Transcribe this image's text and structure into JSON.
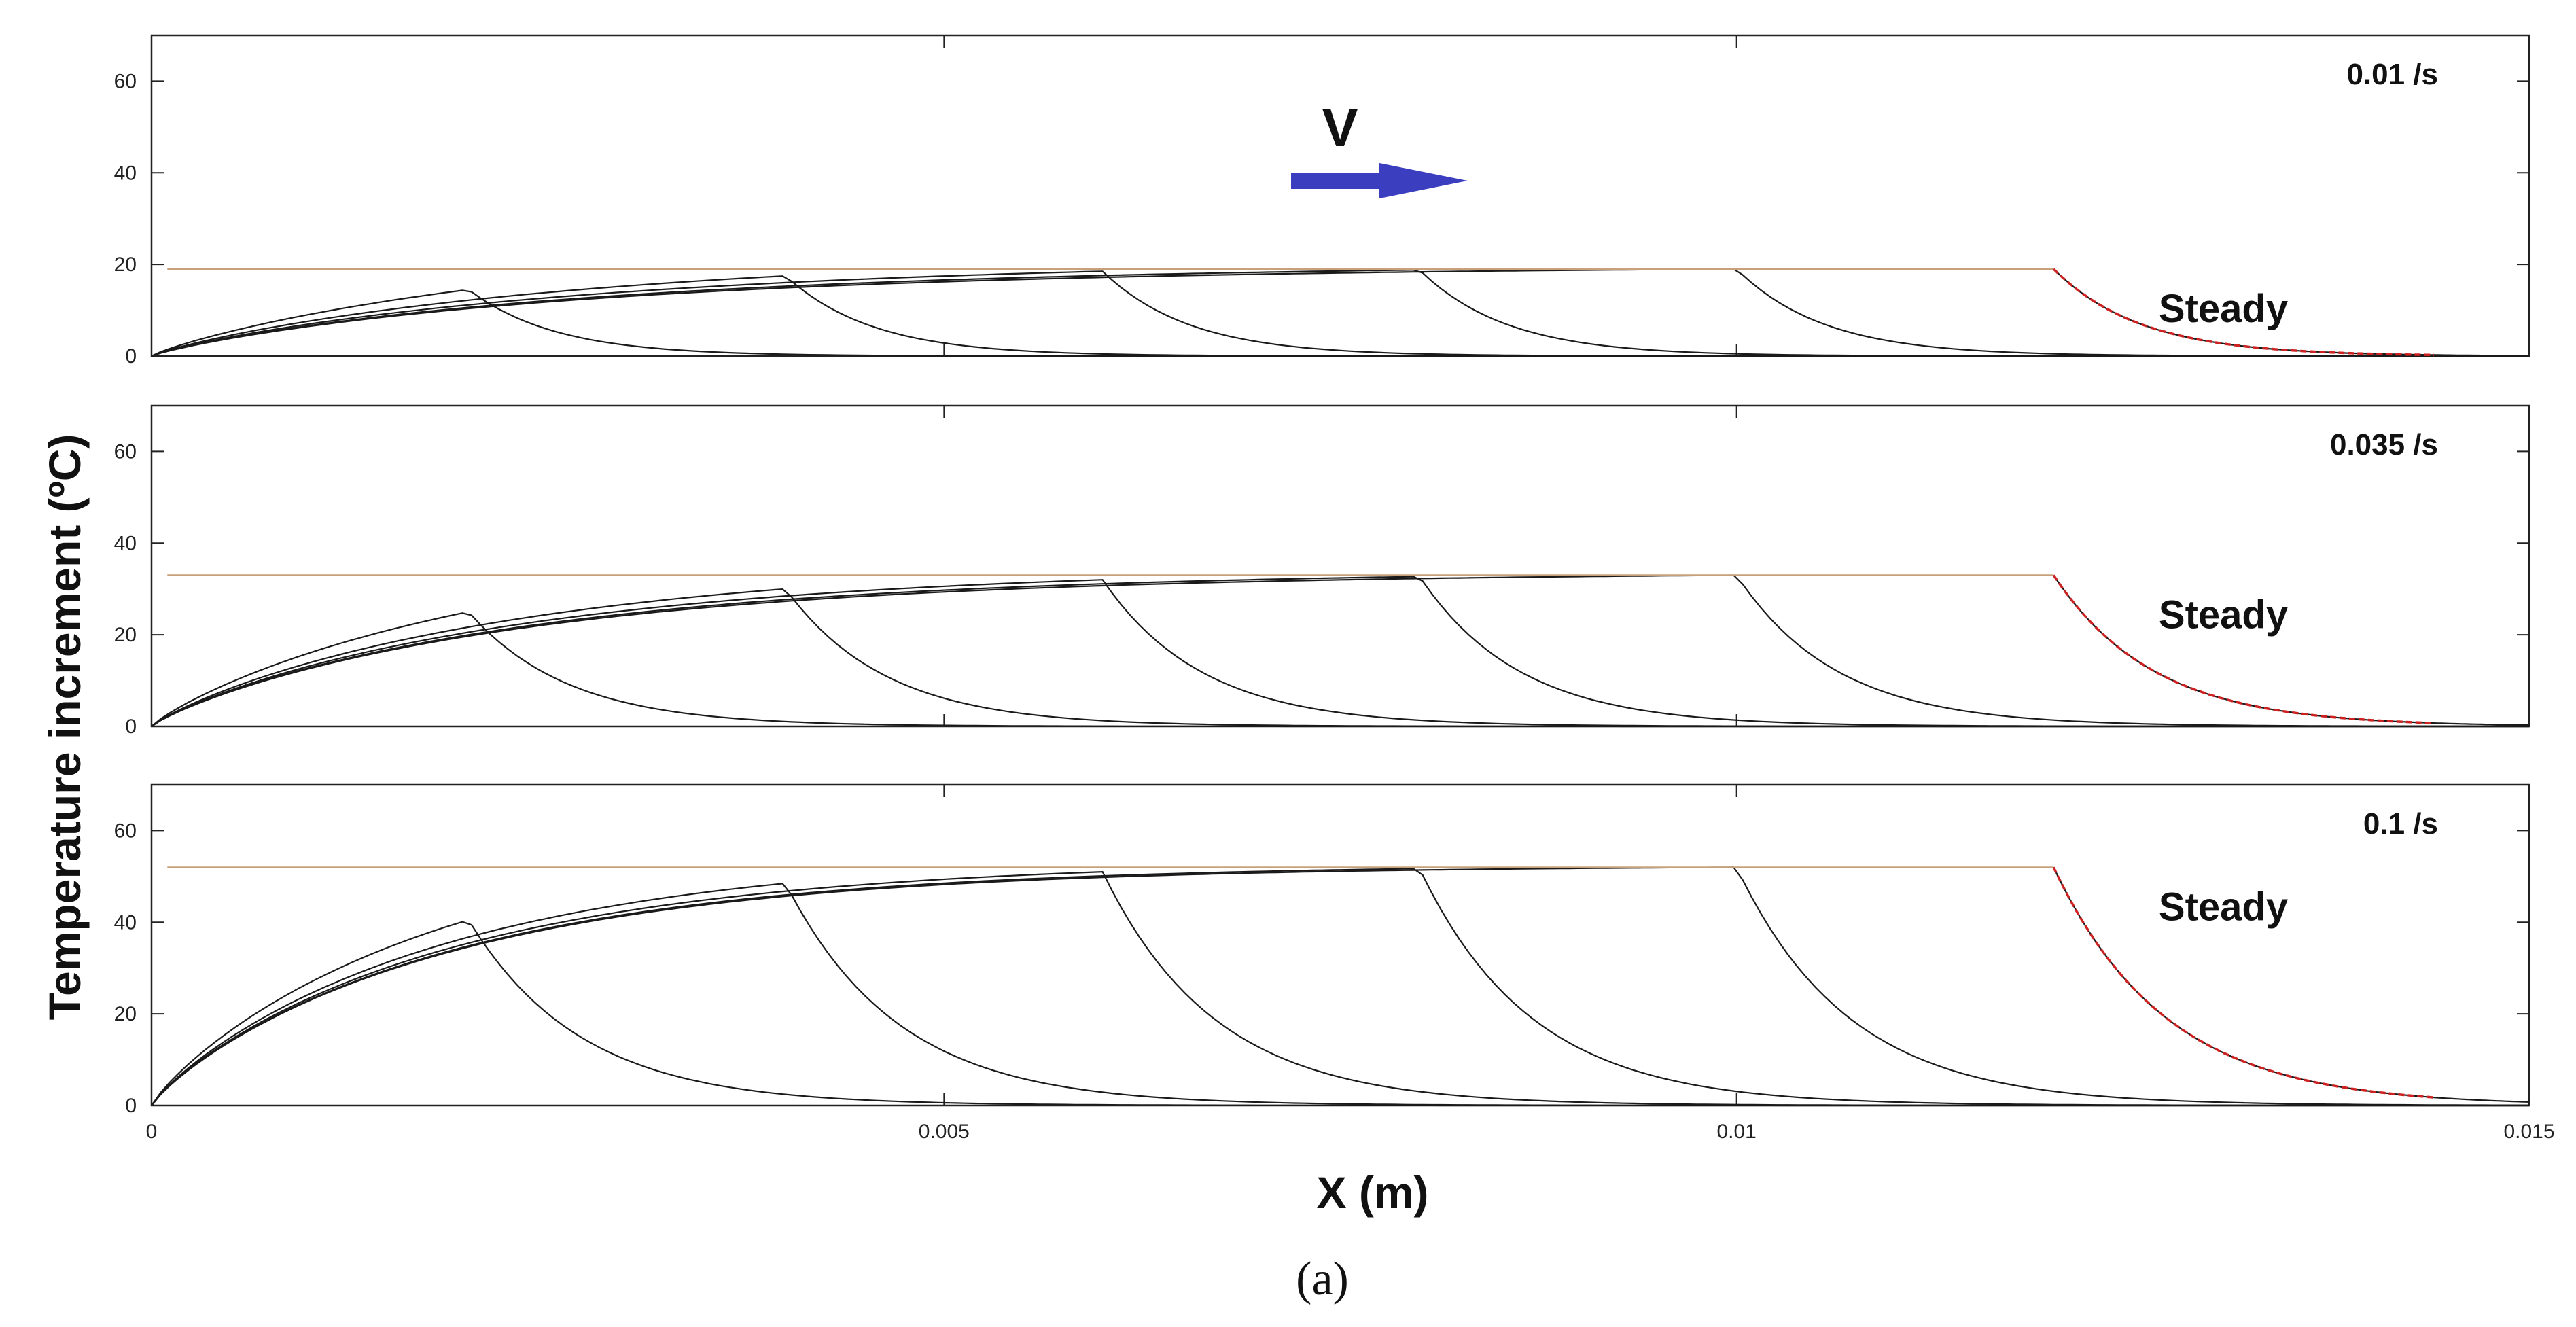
{
  "figure": {
    "ylabel": "Temperature increment (ºC)",
    "xlabel": "X (m)",
    "caption": "(a)",
    "velocity_label": "V",
    "colors": {
      "transient": "#1a1a1a",
      "steady": "#c8a07a",
      "steady_decay": "#cc2222",
      "arrow": "#3b3fbf",
      "frame": "#222222"
    }
  },
  "chart_data": [
    {
      "type": "line",
      "panel_label": "0.01 /s",
      "annotation": "Steady",
      "xlim": [
        0,
        0.015
      ],
      "ylim": [
        0,
        70
      ],
      "yticks": [
        "0",
        "20",
        "40",
        "60"
      ],
      "xticks": [
        "0",
        "0.005",
        "0.01",
        "0.015"
      ],
      "show_xtick_labels": false,
      "steady_value": 19,
      "front_positions": [
        0.002,
        0.004,
        0.006,
        0.008,
        0.01
      ],
      "front_peaks": [
        14.5,
        17.5,
        18.5,
        18.8,
        19
      ],
      "steady_front": 0.012
    },
    {
      "type": "line",
      "panel_label": "0.035 /s",
      "annotation": "Steady",
      "xlim": [
        0,
        0.015
      ],
      "ylim": [
        0,
        70
      ],
      "yticks": [
        "0",
        "20",
        "40",
        "60"
      ],
      "xticks": [
        "0",
        "0.005",
        "0.01",
        "0.015"
      ],
      "show_xtick_labels": false,
      "steady_value": 33,
      "front_positions": [
        0.002,
        0.004,
        0.006,
        0.008,
        0.01
      ],
      "front_peaks": [
        25,
        30,
        32,
        32.7,
        33
      ],
      "steady_front": 0.012
    },
    {
      "type": "line",
      "panel_label": "0.1 /s",
      "annotation": "Steady",
      "xlim": [
        0,
        0.015
      ],
      "ylim": [
        0,
        70
      ],
      "yticks": [
        "0",
        "20",
        "40",
        "60"
      ],
      "xticks": [
        "0",
        "0.005",
        "0.01",
        "0.015"
      ],
      "show_xtick_labels": true,
      "steady_value": 52,
      "front_positions": [
        0.002,
        0.004,
        0.006,
        0.008,
        0.01
      ],
      "front_peaks": [
        40.5,
        48.5,
        51,
        51.7,
        52
      ],
      "steady_front": 0.012
    }
  ]
}
